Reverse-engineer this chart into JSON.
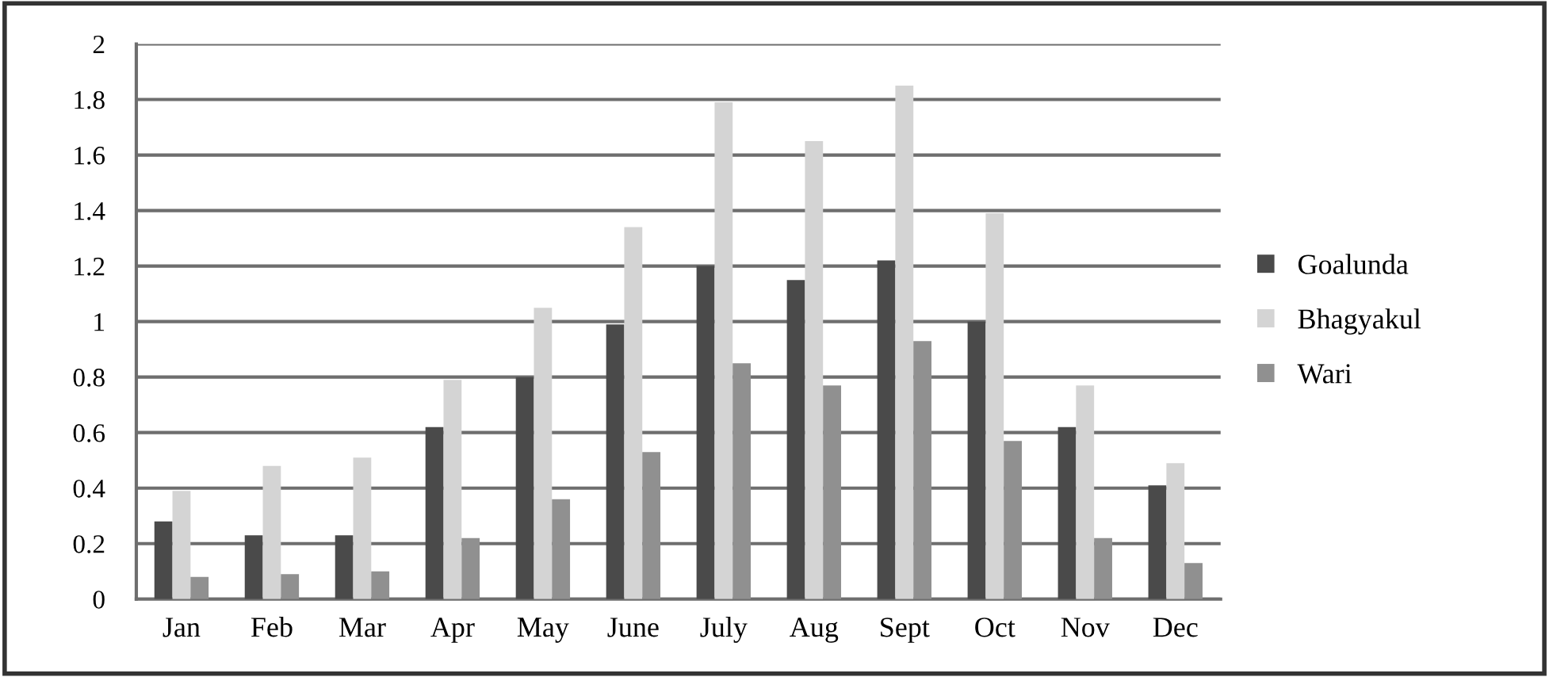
{
  "chart_data": {
    "type": "bar",
    "categories": [
      "Jan",
      "Feb",
      "Mar",
      "Apr",
      "May",
      "June",
      "July",
      "Aug",
      "Sept",
      "Oct",
      "Nov",
      "Dec"
    ],
    "series": [
      {
        "name": "Goalunda",
        "color": "#4a4a4a",
        "values": [
          0.28,
          0.23,
          0.23,
          0.62,
          0.8,
          0.99,
          1.2,
          1.15,
          1.22,
          1.0,
          0.62,
          0.41
        ]
      },
      {
        "name": "Bhagyakul",
        "color": "#d4d4d4",
        "values": [
          0.39,
          0.48,
          0.51,
          0.79,
          1.05,
          1.34,
          1.79,
          1.65,
          1.85,
          1.39,
          0.77,
          0.49
        ]
      },
      {
        "name": "Wari",
        "color": "#909090",
        "values": [
          0.08,
          0.09,
          0.1,
          0.22,
          0.36,
          0.53,
          0.85,
          0.77,
          0.93,
          0.57,
          0.22,
          0.13
        ]
      }
    ],
    "ylim": [
      0,
      2
    ],
    "yticks": [
      0,
      {
        "value": 0.2,
        "label": "0.2"
      },
      {
        "value": 0.4,
        "label": "0.4"
      },
      {
        "value": 0.6,
        "label": "0.6"
      },
      {
        "value": 0.8,
        "label": "0.8"
      },
      1,
      {
        "value": 1.2,
        "label": "1.2"
      },
      {
        "value": 1.4,
        "label": "1.4"
      },
      {
        "value": 1.6,
        "label": "1.6"
      },
      {
        "value": 1.8,
        "label": "1.8"
      },
      2
    ],
    "grid": "y",
    "legend": "right"
  }
}
